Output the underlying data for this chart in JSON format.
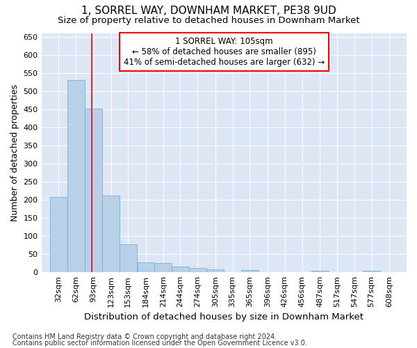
{
  "title": "1, SORREL WAY, DOWNHAM MARKET, PE38 9UD",
  "subtitle": "Size of property relative to detached houses in Downham Market",
  "xlabel": "Distribution of detached houses by size in Downham Market",
  "ylabel": "Number of detached properties",
  "footnote1": "Contains HM Land Registry data © Crown copyright and database right 2024.",
  "footnote2": "Contains public sector information licensed under the Open Government Licence v3.0.",
  "annotation_line1": "1 SORREL WAY: 105sqm",
  "annotation_line2": "← 58% of detached houses are smaller (895)",
  "annotation_line3": "41% of semi-detached houses are larger (632) →",
  "bar_color": "#b8d0e8",
  "bar_edge_color": "#7aafd4",
  "red_line_x": 105,
  "bin_edges": [
    32,
    62,
    93,
    123,
    153,
    184,
    214,
    244,
    274,
    305,
    335,
    365,
    396,
    426,
    456,
    487,
    517,
    547,
    577,
    608,
    638
  ],
  "bar_heights": [
    208,
    530,
    452,
    211,
    78,
    28,
    25,
    15,
    12,
    8,
    0,
    6,
    0,
    0,
    0,
    5,
    0,
    0,
    4,
    0
  ],
  "ylim": [
    0,
    660
  ],
  "yticks": [
    0,
    50,
    100,
    150,
    200,
    250,
    300,
    350,
    400,
    450,
    500,
    550,
    600,
    650
  ],
  "fig_background": "#ffffff",
  "plot_background": "#dce6f5",
  "grid_color": "#ffffff",
  "title_fontsize": 11,
  "subtitle_fontsize": 9.5,
  "tick_label_fontsize": 8,
  "ylabel_fontsize": 9,
  "xlabel_fontsize": 9.5,
  "footnote_fontsize": 7,
  "annot_fontsize": 8.5
}
